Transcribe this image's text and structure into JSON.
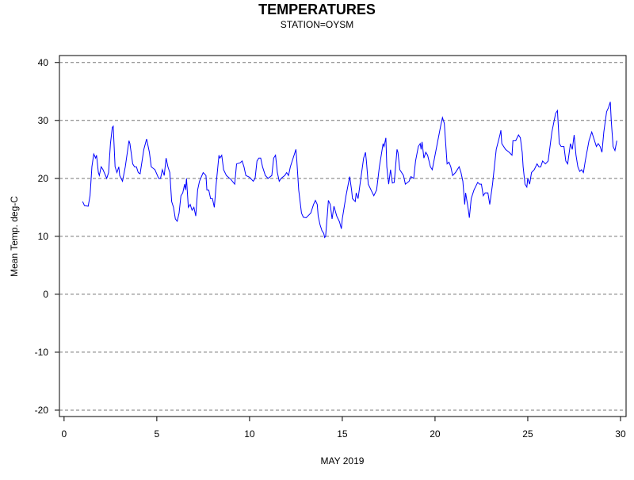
{
  "chart_data": {
    "type": "line",
    "title": "TEMPERATURES",
    "subtitle": "STATION=OYSM",
    "xlabel": "MAY 2019",
    "ylabel": "Mean Temp. deg-C",
    "xlim": [
      -0.25,
      30.3
    ],
    "ylim": [
      -21.1,
      41.2
    ],
    "xticks": [
      0,
      5,
      10,
      15,
      20,
      25,
      30
    ],
    "yticks": [
      -20,
      -10,
      0,
      10,
      20,
      30,
      40
    ],
    "grid": true,
    "series": [
      {
        "color": "#0000ff",
        "x": [
          1.0,
          1.1,
          1.3,
          1.4,
          1.5,
          1.6,
          1.7,
          1.75,
          1.85,
          1.9,
          2.0,
          2.1,
          2.3,
          2.4,
          2.5,
          2.6,
          2.65,
          2.75,
          2.85,
          2.95,
          3.0,
          3.15,
          3.3,
          3.5,
          3.55,
          3.7,
          3.8,
          3.9,
          4.0,
          4.1,
          4.3,
          4.45,
          4.6,
          4.7,
          4.9,
          5.1,
          5.2,
          5.3,
          5.4,
          5.5,
          5.6,
          5.7,
          5.8,
          5.9,
          6.0,
          6.1,
          6.2,
          6.3,
          6.4,
          6.5,
          6.55,
          6.6,
          6.7,
          6.8,
          6.9,
          7.0,
          7.1,
          7.2,
          7.3,
          7.5,
          7.65,
          7.7,
          7.8,
          7.9,
          8.0,
          8.1,
          8.2,
          8.35,
          8.4,
          8.5,
          8.6,
          8.75,
          9.0,
          9.2,
          9.3,
          9.5,
          9.6,
          9.7,
          9.8,
          10.0,
          10.2,
          10.3,
          10.4,
          10.5,
          10.6,
          10.7,
          10.85,
          11.0,
          11.2,
          11.3,
          11.4,
          11.5,
          11.6,
          11.7,
          11.9,
          12.0,
          12.1,
          12.2,
          12.4,
          12.5,
          12.55,
          12.65,
          12.8,
          12.9,
          13.05,
          13.3,
          13.45,
          13.55,
          13.65,
          13.7,
          13.8,
          13.9,
          14.0,
          14.05,
          14.1,
          14.2,
          14.25,
          14.35,
          14.45,
          14.55,
          14.7,
          14.85,
          14.95,
          15.0,
          15.2,
          15.35,
          15.4,
          15.5,
          15.55,
          15.7,
          15.75,
          15.85,
          16.0,
          16.15,
          16.25,
          16.3,
          16.4,
          16.55,
          16.7,
          16.85,
          17.0,
          17.2,
          17.25,
          17.35,
          17.4,
          17.5,
          17.6,
          17.7,
          17.8,
          17.95,
          18.0,
          18.1,
          18.3,
          18.4,
          18.6,
          18.7,
          18.85,
          18.95,
          19.1,
          19.2,
          19.25,
          19.3,
          19.4,
          19.5,
          19.6,
          19.75,
          19.85,
          20.0,
          20.3,
          20.4,
          20.5,
          20.65,
          20.75,
          20.85,
          20.95,
          21.1,
          21.3,
          21.4,
          21.5,
          21.6,
          21.65,
          21.8,
          21.85,
          21.95,
          22.1,
          22.3,
          22.4,
          22.5,
          22.6,
          22.7,
          22.85,
          22.95,
          23.1,
          23.3,
          23.5,
          23.55,
          23.6,
          23.8,
          24.0,
          24.15,
          24.2,
          24.35,
          24.5,
          24.6,
          24.7,
          24.75,
          24.85,
          24.95,
          25.0,
          25.1,
          25.2,
          25.35,
          25.5,
          25.6,
          25.7,
          25.8,
          25.95,
          26.1,
          26.3,
          26.5,
          26.6,
          26.7,
          26.8,
          26.95,
          27.05,
          27.15,
          27.3,
          27.4,
          27.5,
          27.6,
          27.7,
          27.8,
          27.9,
          28.0,
          28.1,
          28.3,
          28.45,
          28.6,
          28.7,
          28.8,
          28.9,
          29.0,
          29.1,
          29.25,
          29.35,
          29.45,
          29.5,
          29.6,
          29.7,
          29.8
        ],
        "values": [
          16,
          15.3,
          15.2,
          17,
          22,
          24.2,
          23.5,
          24,
          21,
          20.5,
          22,
          21.5,
          20,
          21,
          26,
          28.8,
          29,
          22,
          21,
          22,
          20.5,
          19.5,
          22,
          26.5,
          26,
          22.5,
          22,
          22,
          21,
          20.8,
          25,
          26.8,
          24.5,
          22,
          21.5,
          20,
          20,
          21.5,
          20.5,
          23.5,
          22,
          21,
          16,
          15,
          13,
          12.6,
          14,
          17,
          17.5,
          19,
          18,
          20,
          15,
          15.5,
          14.5,
          15,
          13.5,
          18,
          19.5,
          21,
          20.5,
          18,
          18,
          16.5,
          16.5,
          15,
          19,
          24,
          23.5,
          24,
          21.5,
          20.5,
          19.8,
          19,
          22.5,
          22.7,
          23,
          22,
          20.5,
          20.2,
          19.5,
          20,
          23,
          23.5,
          23.5,
          22,
          20.5,
          20,
          20.5,
          23.5,
          24,
          21,
          19.5,
          20,
          20.5,
          21,
          20.5,
          22,
          24,
          25,
          23,
          18,
          14,
          13.3,
          13.2,
          14,
          15.5,
          16.2,
          15.5,
          13.5,
          12,
          11,
          10.5,
          9.8,
          10,
          14,
          16.2,
          15.5,
          13,
          15.2,
          13.5,
          12.5,
          11.3,
          13,
          17,
          19.5,
          20.3,
          18,
          16.5,
          16,
          17.5,
          16.5,
          20,
          23.5,
          24.5,
          23,
          19,
          18,
          17,
          18,
          22,
          26,
          25.5,
          27,
          22,
          19,
          21.5,
          19.2,
          19.3,
          25,
          24.5,
          21.5,
          20.5,
          19,
          19.5,
          20.3,
          20,
          23,
          25.5,
          26,
          25,
          26.3,
          23.5,
          24.5,
          24,
          22,
          21.5,
          24,
          29,
          30.5,
          29.5,
          22.5,
          22.8,
          22,
          20.5,
          21,
          22,
          21,
          19.5,
          15.5,
          17.5,
          14.5,
          13.2,
          16.5,
          18,
          19.3,
          19,
          19,
          17,
          17.5,
          17.5,
          15.5,
          19,
          25,
          27.5,
          28.3,
          26,
          25,
          24.5,
          24,
          26.5,
          26.5,
          27.5,
          27,
          24.5,
          22,
          19,
          18.5,
          20,
          19,
          21,
          21.5,
          22.5,
          22,
          22,
          23,
          22.5,
          23,
          28,
          31.2,
          31.7,
          26,
          25.5,
          25.5,
          23,
          22.5,
          26,
          25,
          27.5,
          24,
          22,
          21.2,
          21.5,
          21,
          23,
          26.5,
          28,
          26.5,
          25.5,
          26,
          25.5,
          24.5,
          28,
          31.5,
          32.2,
          33.2,
          30,
          25.5,
          24.8,
          26.5
        ]
      }
    ]
  }
}
